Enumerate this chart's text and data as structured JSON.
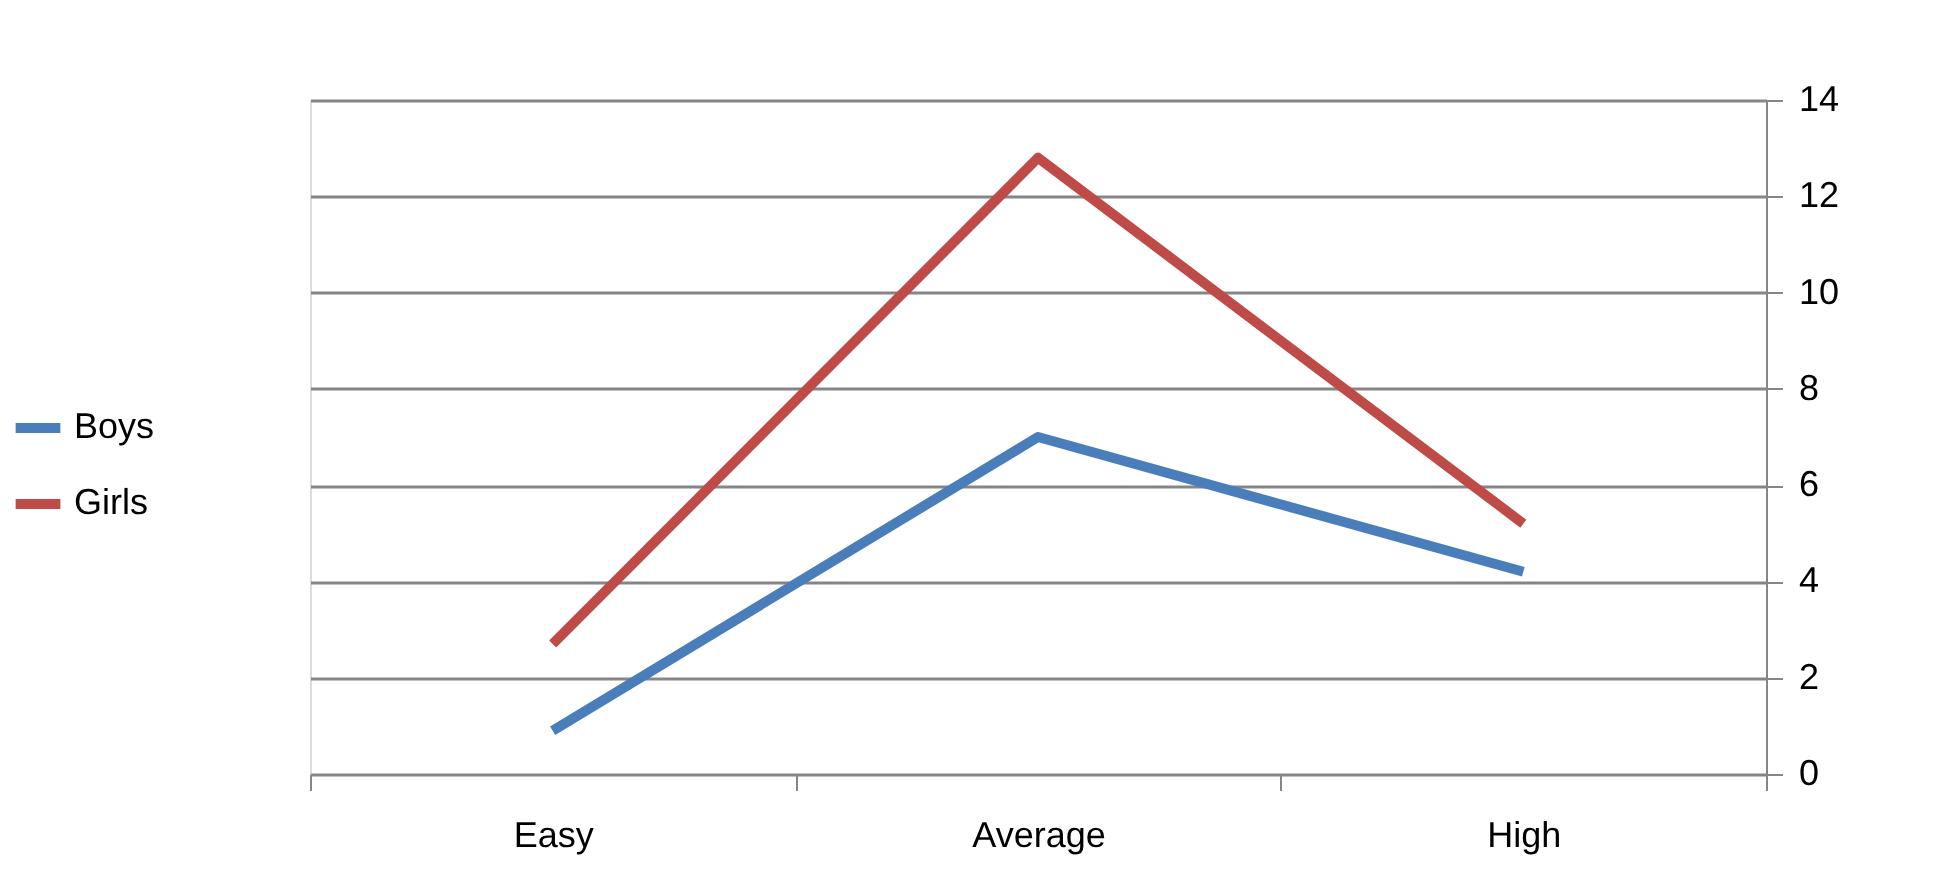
{
  "chart_data": {
    "type": "line",
    "categories": [
      "Easy",
      "Average",
      "High"
    ],
    "series": [
      {
        "name": "Boys",
        "color": "#4a7ebb",
        "values": [
          0.9,
          7.0,
          4.2
        ]
      },
      {
        "name": "Girls",
        "color": "#be4b48",
        "values": [
          2.7,
          12.8,
          5.2
        ]
      }
    ],
    "ylim": [
      0,
      14
    ],
    "yticks": [
      0,
      2,
      4,
      6,
      8,
      10,
      12,
      14
    ],
    "grid": "y",
    "legend": "left",
    "marker": "none",
    "line_style": "solid"
  }
}
